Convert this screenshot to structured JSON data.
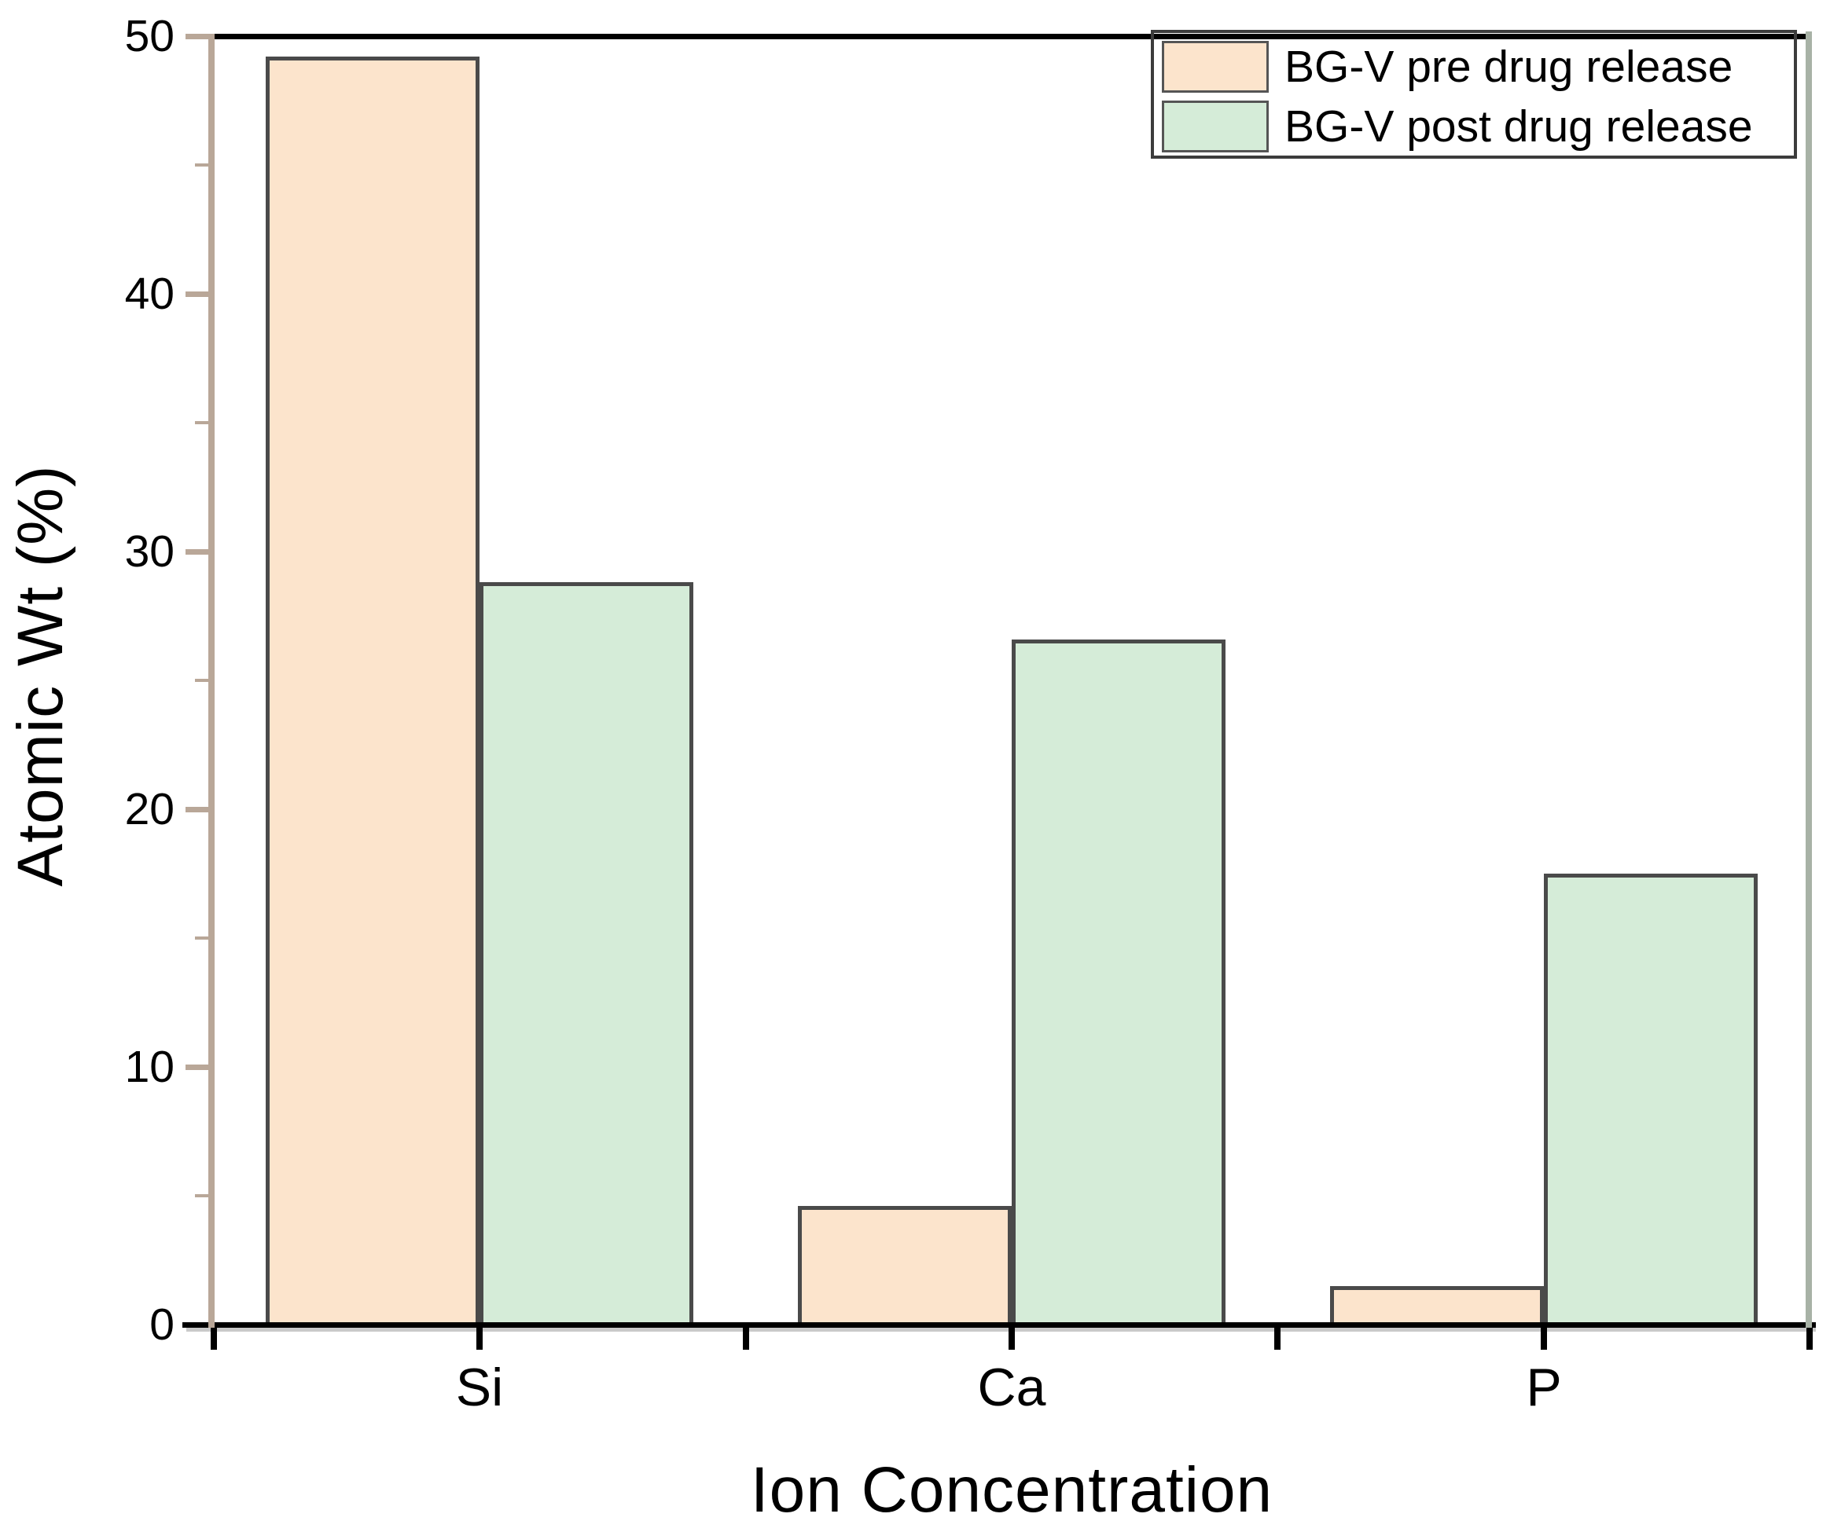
{
  "chart_data": {
    "type": "bar",
    "title": "",
    "categories": [
      "Si",
      "Ca",
      "P"
    ],
    "series": [
      {
        "name": "BG-V pre drug release",
        "color": "#fce4cc",
        "values": [
          49.2,
          4.6,
          1.5
        ]
      },
      {
        "name": "BG-V post drug release",
        "color": "#d5ecd8",
        "values": [
          28.8,
          26.6,
          17.5
        ]
      }
    ],
    "xlabel": "Ion Concentration",
    "ylabel": "Atomic Wt (%)",
    "ylim": [
      0,
      50
    ],
    "y_major_ticks": [
      0,
      10,
      20,
      30,
      40,
      50
    ],
    "y_minor_ticks": [
      5,
      15,
      25,
      35,
      45
    ],
    "grid": false,
    "legend_position": "top-right",
    "colors": {
      "bar_border": "#4a4a4a",
      "top_border": "#000000",
      "bottom_axis": "#000000",
      "axis_shadow": "#c9c9c9",
      "left_axis": "#b9a798",
      "right_border": "#a8b2a6",
      "tick_black": "#000000",
      "text": "#000000",
      "legend_border": "#3c3c3c",
      "swatch_border": "#555555",
      "background": "#ffffff"
    }
  }
}
